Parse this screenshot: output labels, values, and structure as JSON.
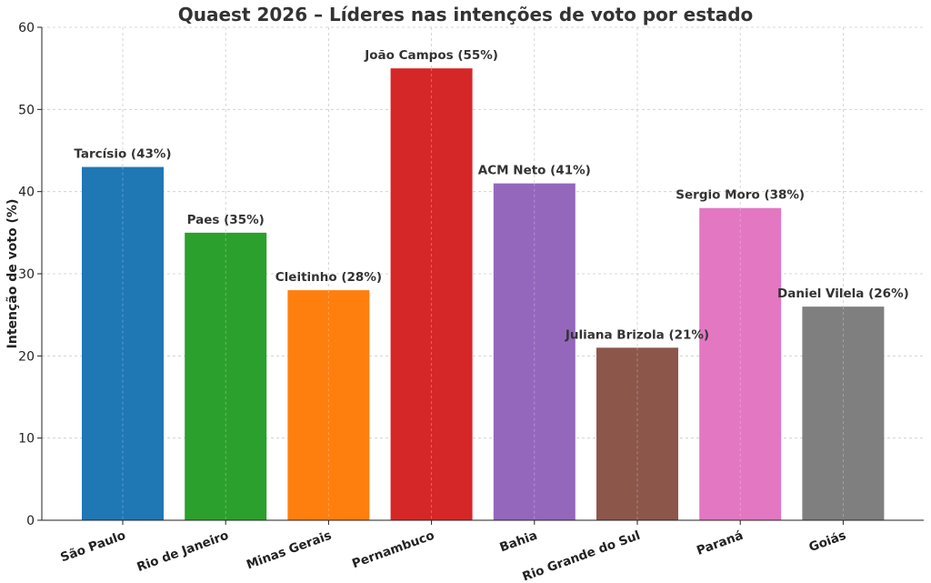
{
  "chart_data": {
    "type": "bar",
    "title": "Quaest 2026 – Líderes nas intenções de voto por estado",
    "xlabel": "",
    "ylabel": "Intenção de voto (%)",
    "ylim": [
      0,
      60
    ],
    "yticks": [
      0,
      10,
      20,
      30,
      40,
      50,
      60
    ],
    "grid": true,
    "categories": [
      "São Paulo",
      "Rio de Janeiro",
      "Minas Gerais",
      "Pernambuco",
      "Bahia",
      "Rio Grande do Sul",
      "Paraná",
      "Goiás"
    ],
    "values": [
      43,
      35,
      28,
      55,
      41,
      21,
      38,
      26
    ],
    "bar_labels": [
      "Tarcísio (43%)",
      "Paes (35%)",
      "Cleitinho (28%)",
      "João Campos (55%)",
      "ACM Neto (41%)",
      "Juliana Brizola (21%)",
      "Sergio Moro (38%)",
      "Daniel Vilela (26%)"
    ],
    "colors": [
      "#1f77b4",
      "#2ca02c",
      "#ff7f0e",
      "#d62728",
      "#9467bd",
      "#8c564b",
      "#e377c2",
      "#7f7f7f"
    ]
  }
}
